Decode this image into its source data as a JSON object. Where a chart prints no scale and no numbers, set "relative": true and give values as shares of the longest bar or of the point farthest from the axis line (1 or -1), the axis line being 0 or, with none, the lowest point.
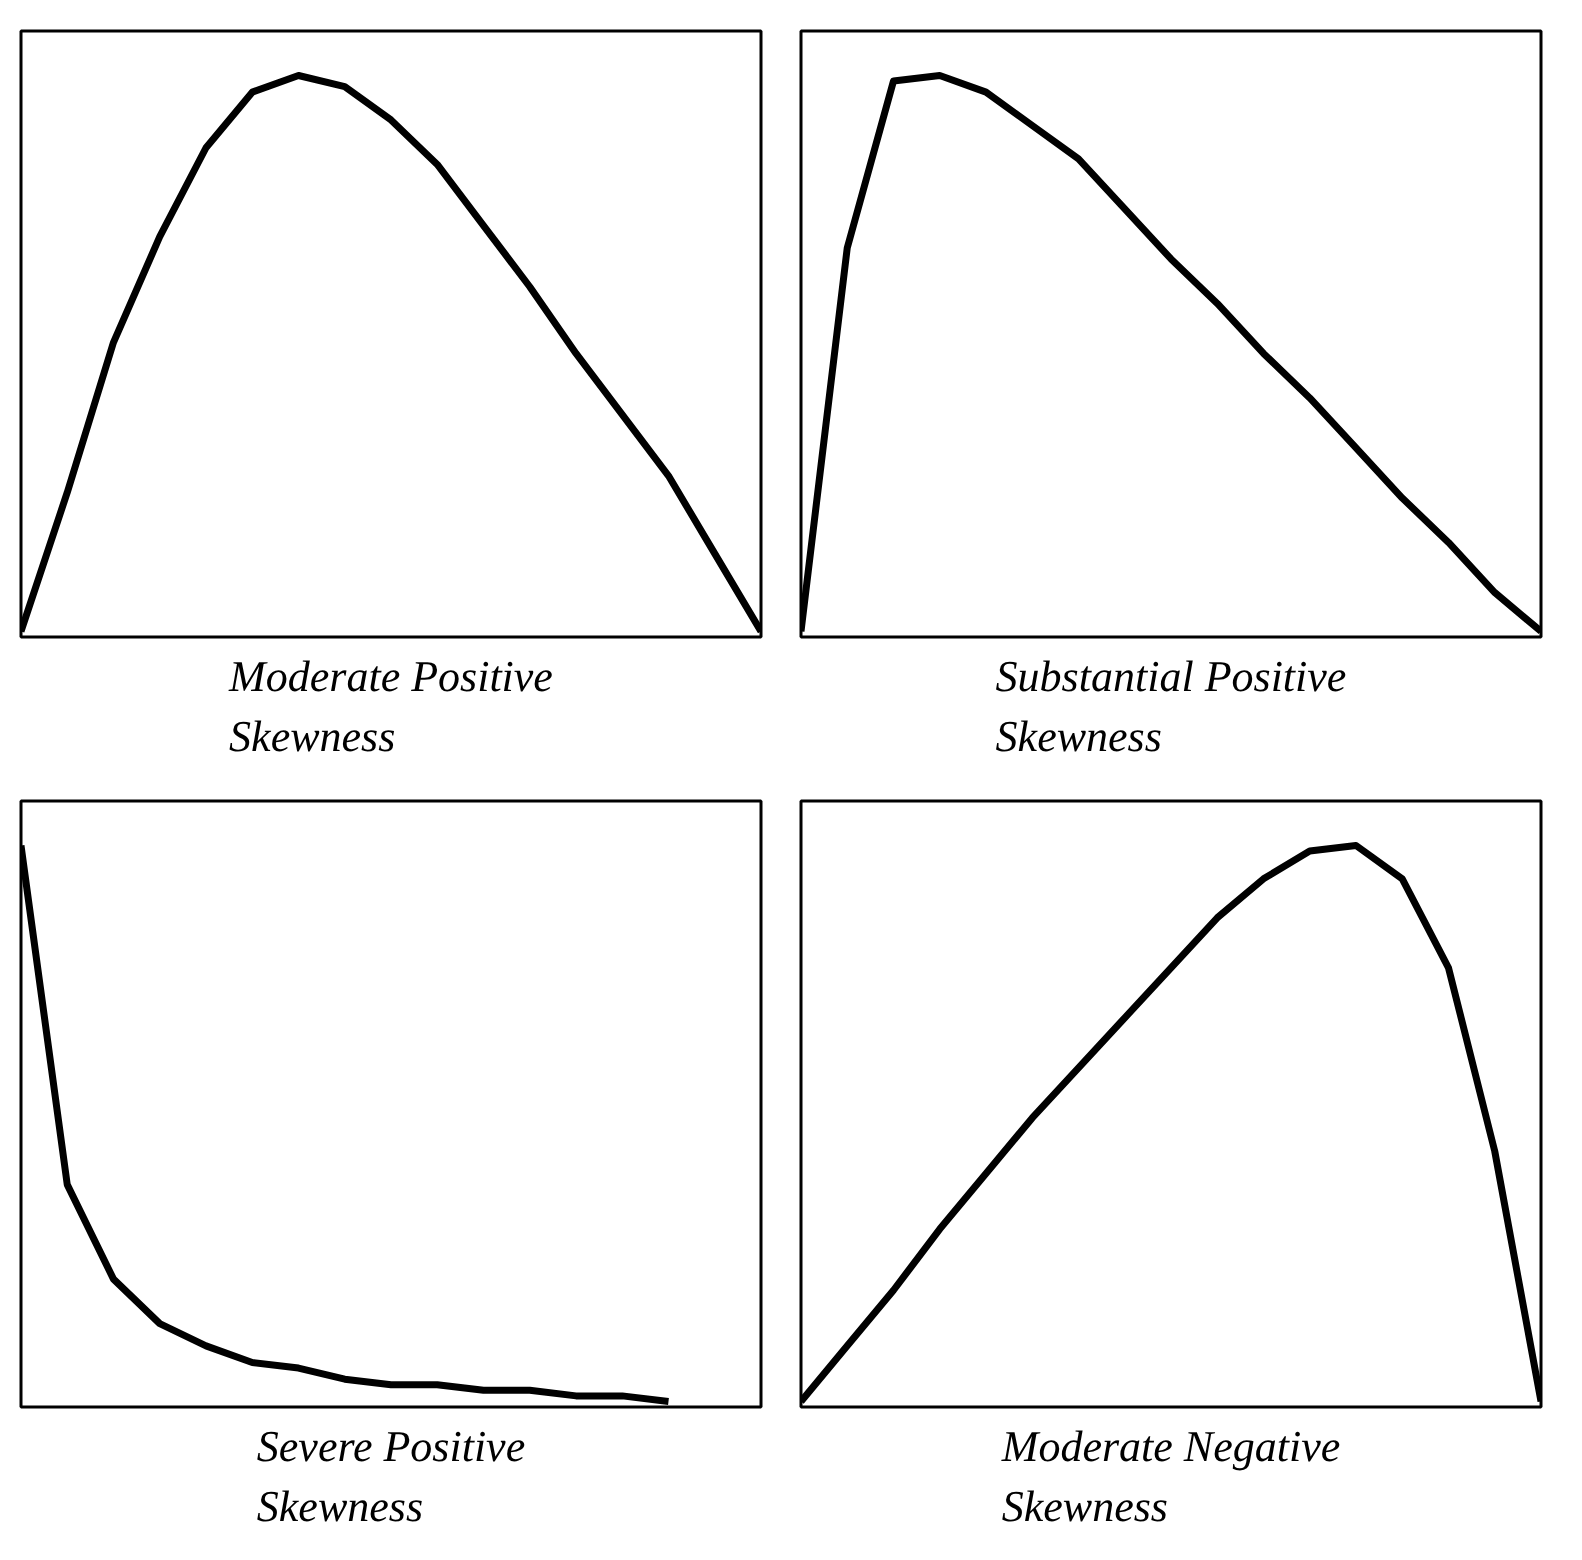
{
  "chart_data": [
    {
      "type": "line",
      "title": "Moderate Positive\nSkewness",
      "relative": true,
      "categories": [
        null,
        null,
        null,
        null,
        null,
        null,
        null,
        null,
        null,
        null,
        null,
        null,
        null,
        null,
        null,
        null,
        null
      ],
      "series": [
        {
          "color": "#000000",
          "values": [
            0,
            0.25,
            0.52,
            0.71,
            0.87,
            0.97,
            1.0,
            0.98,
            0.92,
            0.84,
            0.73,
            0.62,
            0.5,
            0.39,
            0.28,
            0.14,
            0
          ]
        }
      ]
    },
    {
      "type": "line",
      "title": "Substantial Positive\nSkewness",
      "relative": true,
      "categories": [
        null,
        null,
        null,
        null,
        null,
        null,
        null,
        null,
        null,
        null,
        null,
        null,
        null,
        null,
        null,
        null,
        null
      ],
      "series": [
        {
          "color": "#000000",
          "values": [
            0,
            0.69,
            0.99,
            1.0,
            0.97,
            0.91,
            0.85,
            0.76,
            0.67,
            0.59,
            0.5,
            0.42,
            0.33,
            0.24,
            0.16,
            0.07,
            0
          ]
        }
      ]
    },
    {
      "type": "line",
      "title": "Severe Positive\nSkewness",
      "relative": true,
      "categories": [
        null,
        null,
        null,
        null,
        null,
        null,
        null,
        null,
        null,
        null,
        null,
        null,
        null,
        null,
        null,
        null,
        null
      ],
      "series": [
        {
          "color": "#000000",
          "values": [
            1.0,
            0.39,
            0.22,
            0.14,
            0.1,
            0.07,
            0.06,
            0.04,
            0.03,
            0.03,
            0.02,
            0.02,
            0.01,
            0.01,
            0,
            null,
            null
          ]
        }
      ]
    },
    {
      "type": "line",
      "title": "Moderate Negative\nSkewness",
      "relative": true,
      "categories": [
        null,
        null,
        null,
        null,
        null,
        null,
        null,
        null,
        null,
        null,
        null,
        null,
        null,
        null,
        null,
        null,
        null
      ],
      "series": [
        {
          "color": "#000000",
          "values": [
            0,
            0.1,
            0.2,
            0.31,
            0.41,
            0.51,
            0.6,
            0.69,
            0.78,
            0.87,
            0.94,
            0.99,
            1.0,
            0.94,
            0.78,
            0.45,
            0
          ]
        }
      ]
    }
  ]
}
